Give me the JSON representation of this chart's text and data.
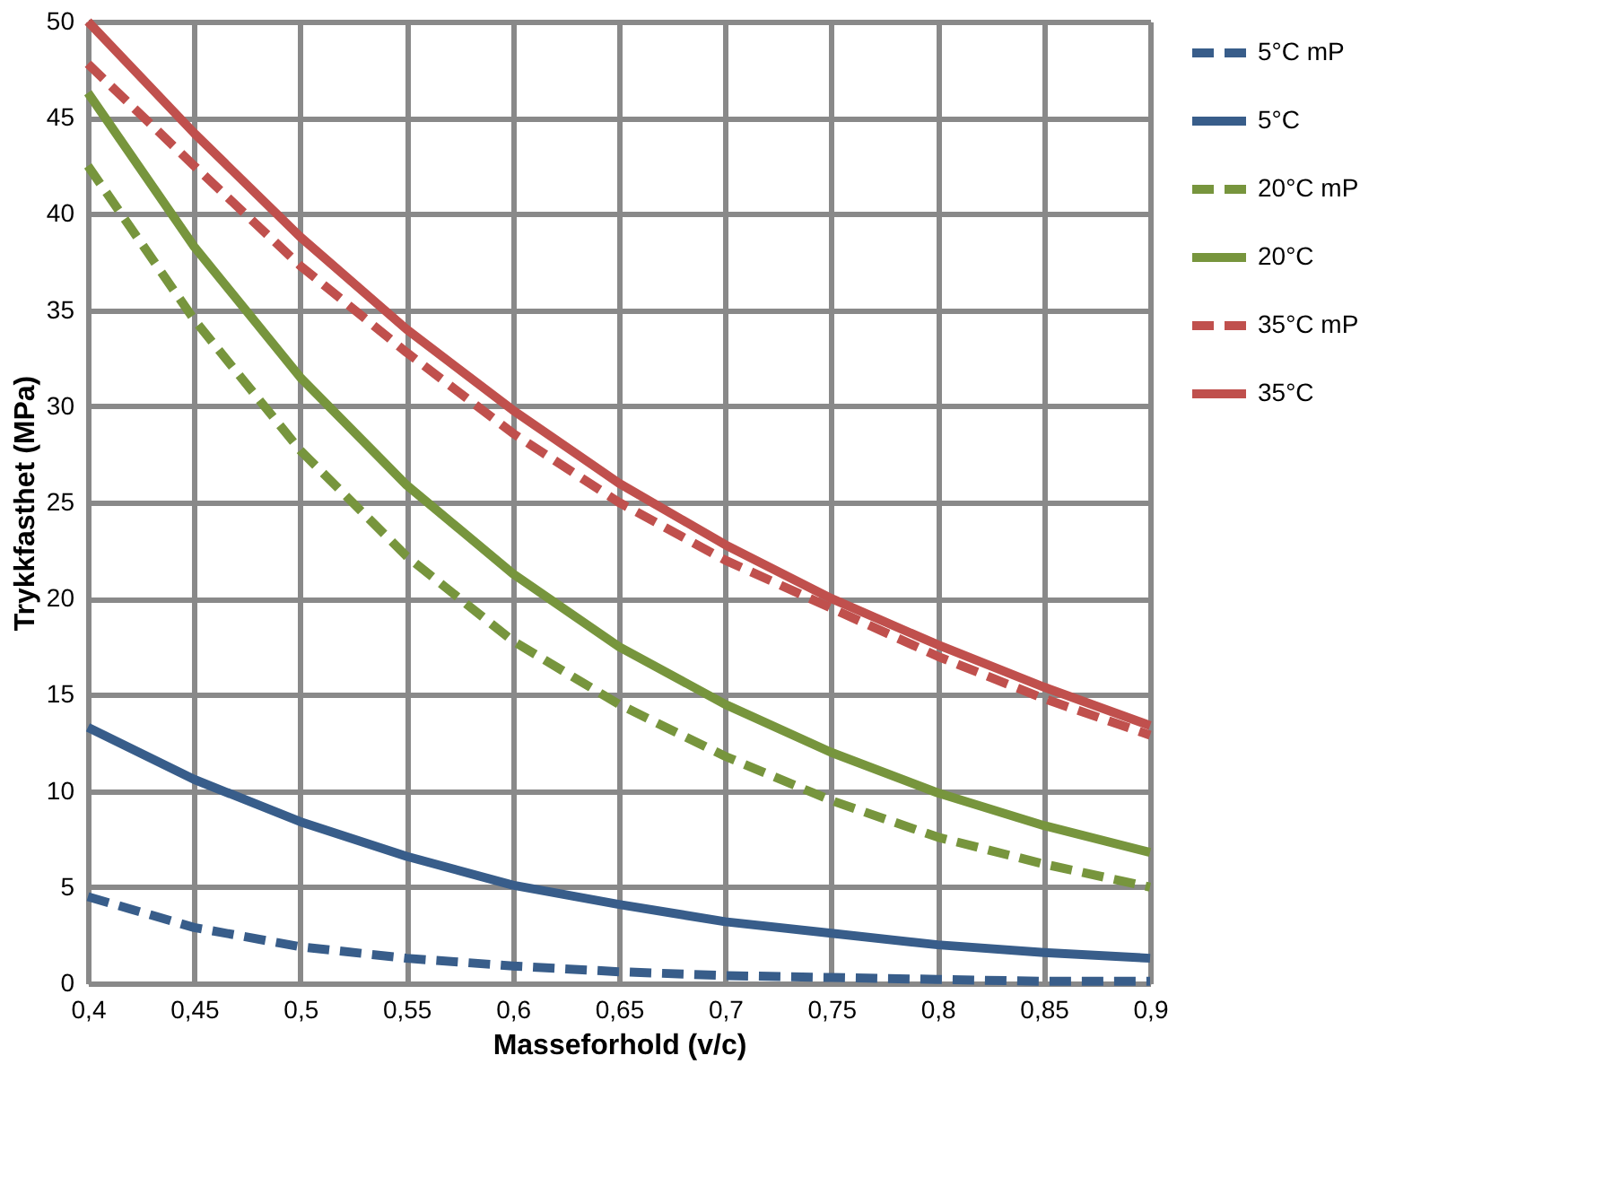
{
  "chart_data": {
    "type": "line",
    "xlabel": "Masseforhold (v/c)",
    "ylabel": "Trykkfasthet (MPa)",
    "x": [
      0.4,
      0.45,
      0.5,
      0.55,
      0.6,
      0.65,
      0.7,
      0.75,
      0.8,
      0.85,
      0.9
    ],
    "series": [
      {
        "name": "5°C mP",
        "color": "#385d8a",
        "line_style": "dashed",
        "values": [
          4.5,
          2.9,
          1.9,
          1.3,
          0.9,
          0.6,
          0.4,
          0.3,
          0.2,
          0.1,
          0.1
        ]
      },
      {
        "name": "5°C",
        "color": "#385d8a",
        "line_style": "solid",
        "values": [
          13.3,
          10.6,
          8.4,
          6.6,
          5.1,
          4.1,
          3.2,
          2.6,
          2.0,
          1.6,
          1.3
        ]
      },
      {
        "name": "20°C mP",
        "color": "#77953d",
        "line_style": "dashed",
        "values": [
          42.5,
          34.5,
          27.7,
          22.2,
          17.8,
          14.5,
          11.8,
          9.5,
          7.6,
          6.2,
          5.0
        ]
      },
      {
        "name": "20°C",
        "color": "#77953d",
        "line_style": "solid",
        "values": [
          46.3,
          38.3,
          31.5,
          25.9,
          21.3,
          17.5,
          14.5,
          12.0,
          9.9,
          8.2,
          6.8
        ]
      },
      {
        "name": "35°C mP",
        "color": "#c0504d",
        "line_style": "dashed",
        "values": [
          47.8,
          42.5,
          37.3,
          32.8,
          28.6,
          25.0,
          22.0,
          19.5,
          17.0,
          14.8,
          12.9
        ]
      },
      {
        "name": "35°C",
        "color": "#c0504d",
        "line_style": "solid",
        "values": [
          50.0,
          44.2,
          38.8,
          34.0,
          29.8,
          26.0,
          22.8,
          20.0,
          17.6,
          15.4,
          13.4
        ]
      }
    ],
    "xlim": [
      0.4,
      0.9
    ],
    "xticks": [
      {
        "value": 0.4,
        "label": "0,4"
      },
      {
        "value": 0.45,
        "label": "0,45"
      },
      {
        "value": 0.5,
        "label": "0,5"
      },
      {
        "value": 0.55,
        "label": "0,55"
      },
      {
        "value": 0.6,
        "label": "0,6"
      },
      {
        "value": 0.65,
        "label": "0,65"
      },
      {
        "value": 0.7,
        "label": "0,7"
      },
      {
        "value": 0.75,
        "label": "0,75"
      },
      {
        "value": 0.8,
        "label": "0,8"
      },
      {
        "value": 0.85,
        "label": "0,85"
      },
      {
        "value": 0.9,
        "label": "0,9"
      }
    ],
    "ylim": [
      0,
      50
    ],
    "yticks": [
      0,
      5,
      10,
      15,
      20,
      25,
      30,
      35,
      40,
      45,
      50
    ],
    "grid": true,
    "legend": "right",
    "marker": "none"
  }
}
